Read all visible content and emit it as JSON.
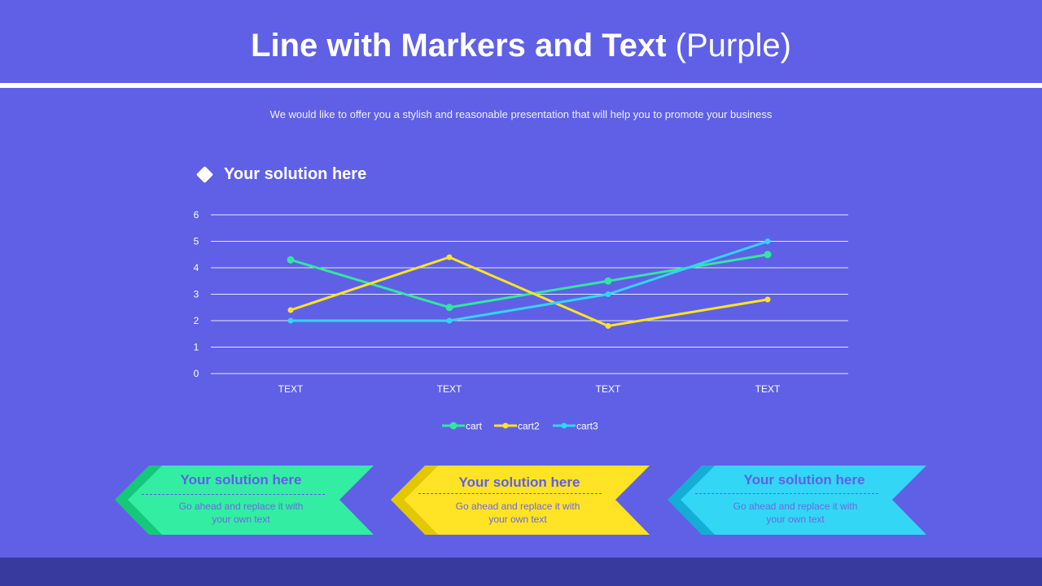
{
  "header": {
    "title_bold": "Line with Markers and Text",
    "title_light": "(Purple)",
    "subtitle": "We would like to offer you a stylish and reasonable presentation that will help you to promote your business"
  },
  "chart_section": {
    "icon": "diamond-icon",
    "title": "Your solution here"
  },
  "colors": {
    "background": "#5f60e6",
    "footer": "#383a9e",
    "cart": "#33e6a0",
    "cart2": "#ffe324",
    "cart3": "#33d4f5",
    "card_green": "#33eda3",
    "card_green_dark": "#16c87a",
    "card_yellow": "#ffe324",
    "card_yellow_dark": "#e3c800",
    "card_cyan": "#33d6f5",
    "card_cyan_dark": "#12aed6"
  },
  "chart_data": {
    "type": "line",
    "title": "Your solution here",
    "categories": [
      "TEXT",
      "TEXT",
      "TEXT",
      "TEXT"
    ],
    "series": [
      {
        "name": "cart",
        "values": [
          4.3,
          2.5,
          3.5,
          4.5
        ],
        "color": "#33e6a0"
      },
      {
        "name": "cart2",
        "values": [
          2.4,
          4.4,
          1.8,
          2.8
        ],
        "color": "#ffe324"
      },
      {
        "name": "cart3",
        "values": [
          2.0,
          2.0,
          3.0,
          5.0
        ],
        "color": "#33d4f5"
      }
    ],
    "yticks": [
      "0",
      "1",
      "2",
      "3",
      "4",
      "5",
      "6"
    ],
    "ylim": [
      0,
      6
    ],
    "xlabel": "",
    "ylabel": "",
    "grid": true,
    "legend_position": "bottom"
  },
  "cards": [
    {
      "title": "Your solution  here",
      "text_line1": "Go ahead and replace it with",
      "text_line2": "your own text"
    },
    {
      "title": "Your solution  here",
      "text_line1": "Go ahead and replace it with",
      "text_line2": "your own text"
    },
    {
      "title": "Your solution  here",
      "text_line1": "Go ahead and replace it with",
      "text_line2": "your own text"
    }
  ]
}
